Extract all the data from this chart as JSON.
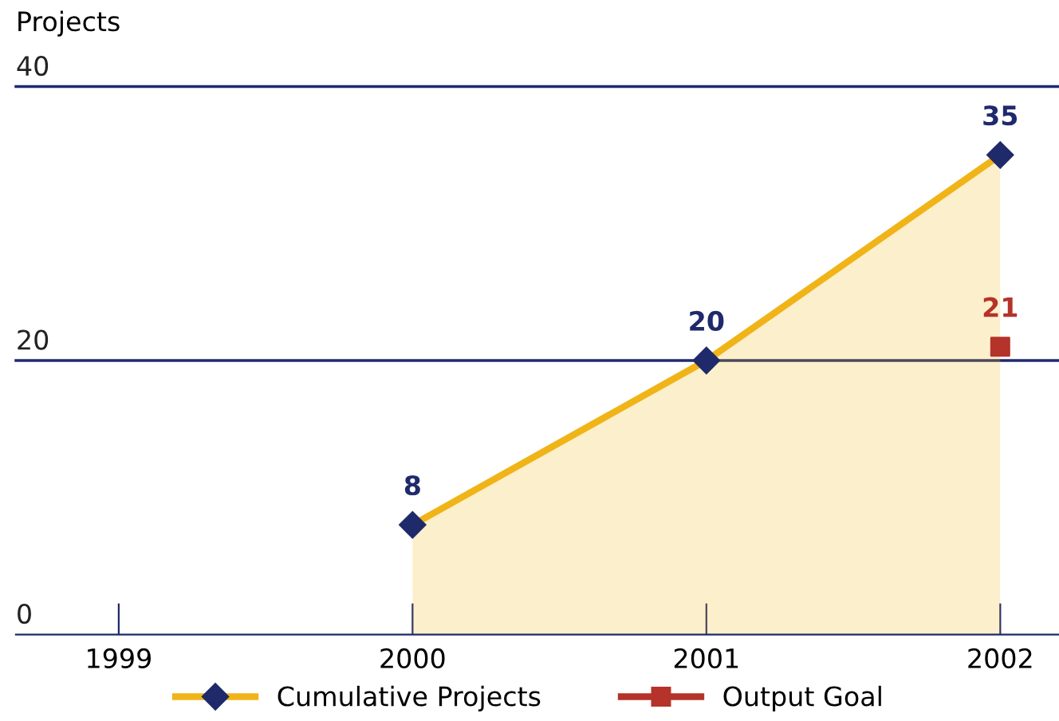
{
  "chart_data": {
    "type": "area",
    "ylabel": "Projects",
    "categories": [
      "1999",
      "2000",
      "2001",
      "2002"
    ],
    "series": [
      {
        "name": "Cumulative Projects",
        "color": "#f0b418",
        "marker": "diamond",
        "values": [
          null,
          8,
          20,
          35
        ]
      },
      {
        "name": "Output Goal",
        "type": "scatter",
        "color": "#b5332a",
        "marker": "square",
        "values": [
          null,
          null,
          null,
          21
        ]
      }
    ],
    "ylim": [
      0,
      40
    ],
    "yticks": [
      0,
      20,
      40
    ],
    "ref_lines": [
      {
        "axis": "y",
        "value": 20,
        "color": "#1f2a6b"
      },
      {
        "axis": "y",
        "value": 40,
        "color": "#1f2a6b"
      }
    ],
    "data_labels": true,
    "legend": "bottom"
  }
}
